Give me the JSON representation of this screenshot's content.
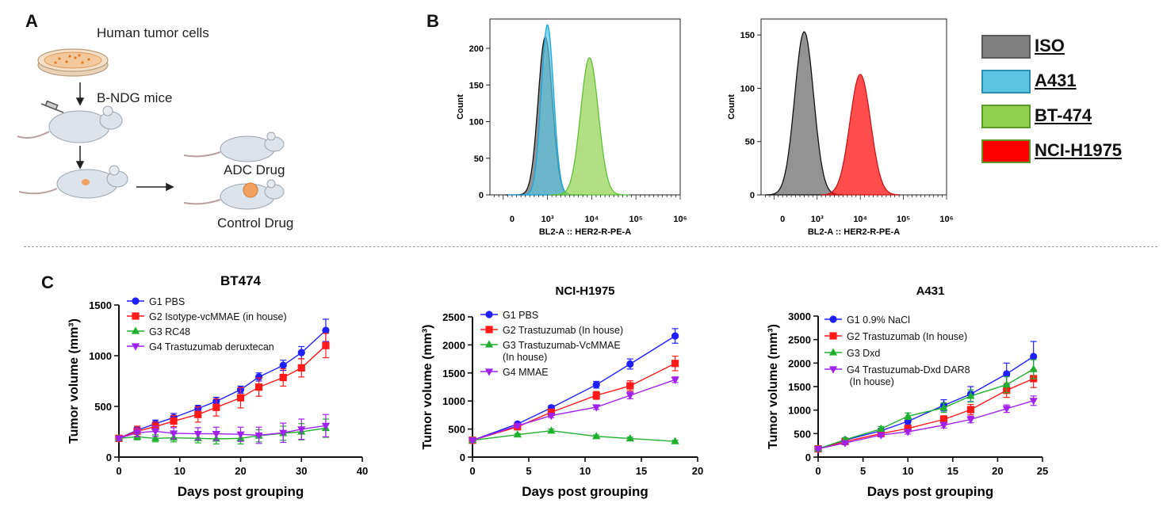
{
  "panel_labels": {
    "a": "A",
    "b": "B",
    "c": "C"
  },
  "schematic": {
    "top_label": "Human tumor cells",
    "mice_label": "B-NDG mice",
    "adc_label": "ADC Drug",
    "control_label": "Control Drug"
  },
  "flow_legend": [
    {
      "label": "ISO",
      "fill": "#808080",
      "border": "#5a5a5a"
    },
    {
      "label": "A431",
      "fill": "#5bc4e0",
      "border": "#2a8fb0"
    },
    {
      "label": "BT-474",
      "fill": "#92d050",
      "border": "#5c9a28"
    },
    {
      "label": "NCI-H1975",
      "fill": "#ff0000",
      "border": "#5c9a28"
    }
  ],
  "flow_plots": [
    {
      "xlabel": "BL2-A :: HER2-R-PE-A",
      "ylabel": "Count",
      "y_ticks": [
        "0",
        "50",
        "100",
        "150",
        "200"
      ],
      "x_ticks": [
        "0",
        "10³",
        "10⁴",
        "10⁵",
        "10⁶"
      ],
      "ymax": 240,
      "series": [
        {
          "label": "ISO",
          "peak_log": 2.95,
          "peak": 215,
          "width": 0.16
        },
        {
          "label": "A431",
          "peak_log": 3.0,
          "peak": 232,
          "width": 0.14
        },
        {
          "label": "BT-474",
          "peak_log": 3.95,
          "peak": 187,
          "width": 0.2
        }
      ]
    },
    {
      "xlabel": "BL2-A :: HER2-R-PE-A",
      "ylabel": "Count",
      "y_ticks": [
        "0",
        "50",
        "100",
        "150"
      ],
      "x_ticks": [
        "0",
        "10³",
        "10⁴",
        "10⁵",
        "10⁶"
      ],
      "ymax": 165,
      "series": [
        {
          "label": "ISO",
          "peak_log": 2.7,
          "peak": 153,
          "width": 0.22
        },
        {
          "label": "NCI-H1975",
          "peak_log": 4.0,
          "peak": 113,
          "width": 0.24
        }
      ]
    }
  ],
  "chart_data": [
    {
      "type": "line",
      "title": "BT474",
      "xlabel": "Days post grouping",
      "ylabel": "Tumor volume (mm³)",
      "xlim": [
        0,
        40
      ],
      "ylim": [
        0,
        1500
      ],
      "x_ticks": [
        0,
        10,
        20,
        30,
        40
      ],
      "y_ticks": [
        0,
        500,
        1000,
        1500
      ],
      "series": [
        {
          "name": "G1 PBS",
          "color": "#1f1fff",
          "marker": "circle",
          "x": [
            0,
            3,
            6,
            9,
            13,
            16,
            20,
            23,
            27,
            30,
            34
          ],
          "y": [
            185,
            265,
            330,
            390,
            480,
            550,
            665,
            790,
            905,
            1030,
            1250
          ],
          "err": [
            20,
            30,
            35,
            40,
            30,
            40,
            35,
            40,
            50,
            60,
            110
          ]
        },
        {
          "name": "G2 Isotype-vcMMAE (in house)",
          "color": "#ff1a1a",
          "marker": "square",
          "x": [
            0,
            3,
            6,
            9,
            13,
            16,
            20,
            23,
            27,
            30,
            34
          ],
          "y": [
            185,
            255,
            300,
            355,
            420,
            490,
            585,
            690,
            785,
            880,
            1100
          ],
          "err": [
            20,
            50,
            45,
            55,
            75,
            85,
            100,
            90,
            85,
            90,
            120
          ]
        },
        {
          "name": "G3 RC48",
          "color": "#1fb02e",
          "marker": "triangle-up",
          "x": [
            0,
            3,
            6,
            9,
            13,
            16,
            20,
            23,
            27,
            30,
            34
          ],
          "y": [
            185,
            200,
            185,
            190,
            185,
            180,
            185,
            210,
            235,
            250,
            285
          ],
          "err": [
            20,
            30,
            35,
            40,
            45,
            50,
            55,
            60,
            70,
            80,
            90
          ]
        },
        {
          "name": "G4 Trastuzumab deruxtecan",
          "color": "#a020f0",
          "marker": "triangle-down",
          "x": [
            0,
            3,
            6,
            9,
            13,
            16,
            20,
            23,
            27,
            30,
            34
          ],
          "y": [
            185,
            240,
            255,
            235,
            230,
            230,
            225,
            215,
            240,
            275,
            310
          ],
          "err": [
            20,
            40,
            50,
            55,
            60,
            65,
            70,
            80,
            95,
            100,
            110
          ]
        }
      ]
    },
    {
      "type": "line",
      "title": "NCI-H1975",
      "xlabel": "Days post grouping",
      "ylabel": "Tumor volume (mm³)",
      "xlim": [
        0,
        20
      ],
      "ylim": [
        0,
        2500
      ],
      "x_ticks": [
        0,
        5,
        10,
        15,
        20
      ],
      "y_ticks": [
        0,
        500,
        1000,
        1500,
        2000,
        2500
      ],
      "series": [
        {
          "name": "G1 PBS",
          "color": "#1f1fff",
          "marker": "circle",
          "x": [
            0,
            4,
            7,
            11,
            14,
            18
          ],
          "y": [
            300,
            590,
            880,
            1290,
            1660,
            2160
          ],
          "err": [
            20,
            30,
            40,
            60,
            90,
            130
          ]
        },
        {
          "name": "G2 Trastuzumab (In house)",
          "color": "#ff1a1a",
          "marker": "square",
          "x": [
            0,
            4,
            7,
            11,
            14,
            18
          ],
          "y": [
            300,
            540,
            800,
            1100,
            1270,
            1670
          ],
          "err": [
            20,
            30,
            40,
            70,
            90,
            130
          ]
        },
        {
          "name": "G3 Trastuzumab-VcMMAE (In house)",
          "color": "#1fb02e",
          "marker": "triangle-up",
          "x": [
            0,
            4,
            7,
            11,
            14,
            18
          ],
          "y": [
            300,
            400,
            470,
            370,
            330,
            280
          ],
          "err": [
            20,
            20,
            30,
            25,
            25,
            20
          ]
        },
        {
          "name": "G4 MMAE",
          "color": "#a020f0",
          "marker": "triangle-down",
          "x": [
            0,
            4,
            7,
            11,
            14,
            18
          ],
          "y": [
            300,
            560,
            740,
            890,
            1100,
            1380
          ],
          "err": [
            20,
            25,
            35,
            40,
            60,
            50
          ]
        }
      ]
    },
    {
      "type": "line",
      "title": "A431",
      "xlabel": "Days post grouping",
      "ylabel": "Tumor volume (mm³)",
      "xlim": [
        0,
        25
      ],
      "ylim": [
        0,
        3000
      ],
      "x_ticks": [
        0,
        5,
        10,
        15,
        20,
        25
      ],
      "y_ticks": [
        0,
        500,
        1000,
        1500,
        2000,
        2500,
        3000
      ],
      "series": [
        {
          "name": "G1 0.9% NaCl",
          "color": "#1f1fff",
          "marker": "circle",
          "x": [
            0,
            3,
            7,
            10,
            14,
            17,
            21,
            24
          ],
          "y": [
            175,
            360,
            560,
            760,
            1100,
            1340,
            1770,
            2140
          ],
          "err": [
            20,
            40,
            50,
            70,
            120,
            160,
            230,
            320
          ]
        },
        {
          "name": "G2 Trastuzumab (In house)",
          "color": "#ff1a1a",
          "marker": "square",
          "x": [
            0,
            3,
            7,
            10,
            14,
            17,
            21,
            24
          ],
          "y": [
            175,
            330,
            500,
            610,
            800,
            1010,
            1420,
            1670
          ],
          "err": [
            20,
            40,
            50,
            60,
            80,
            110,
            150,
            190
          ]
        },
        {
          "name": "G3 Dxd",
          "color": "#1fb02e",
          "marker": "triangle-up",
          "x": [
            0,
            3,
            7,
            10,
            14,
            17,
            21,
            24
          ],
          "y": [
            175,
            370,
            600,
            870,
            1050,
            1300,
            1540,
            1870
          ],
          "err": [
            20,
            40,
            50,
            70,
            100,
            130,
            170,
            200
          ]
        },
        {
          "name": "G4 Trastuzumab-Dxd DAR8 (In house)",
          "color": "#a020f0",
          "marker": "triangle-down",
          "x": [
            0,
            3,
            7,
            10,
            14,
            17,
            21,
            24
          ],
          "y": [
            175,
            300,
            470,
            540,
            680,
            800,
            1030,
            1200
          ],
          "err": [
            20,
            30,
            40,
            50,
            60,
            70,
            80,
            100
          ]
        }
      ]
    }
  ]
}
